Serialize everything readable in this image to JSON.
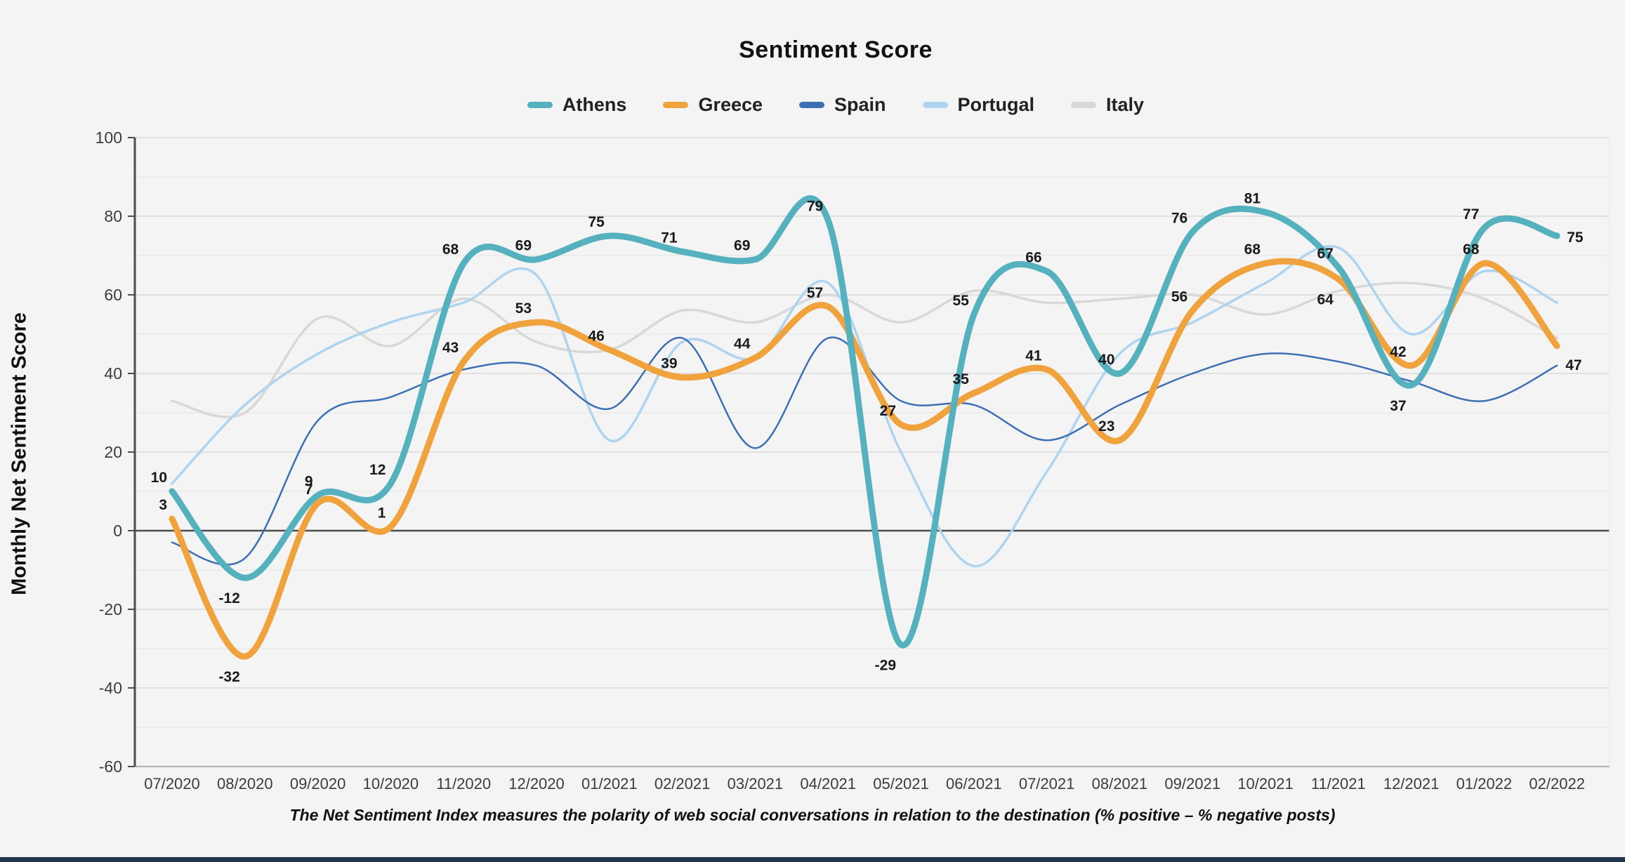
{
  "title": "Sentiment Score",
  "y_axis": {
    "label": "Monthly Net Sentiment Score",
    "tick_labels": [
      100,
      80,
      60,
      40,
      20,
      0,
      -20,
      -40,
      -60
    ],
    "min": -60,
    "max": 100
  },
  "footnote": "The Net Sentiment Index measures the polarity of web social conversations in relation to the destination (% positive – % negative posts)",
  "legend": [
    {
      "label": "Athens",
      "color": "#56b1be"
    },
    {
      "label": "Greece",
      "color": "#f0a23c"
    },
    {
      "label": "Spain",
      "color": "#3d6fb5"
    },
    {
      "label": "Portugal",
      "color": "#aed4ef"
    },
    {
      "label": "Italy",
      "color": "#d8d8d8"
    }
  ],
  "chart_data": {
    "type": "line",
    "title": "Sentiment Score",
    "xlabel": "",
    "ylabel": "Monthly Net Sentiment Score",
    "ylim": [
      -60,
      100
    ],
    "grid": "horizontal gridlines every 10, labeled every 20, dark zero line",
    "legend_position": "top",
    "x": [
      "07/2020",
      "08/2020",
      "09/2020",
      "10/2020",
      "11/2020",
      "12/2020",
      "01/2021",
      "02/2021",
      "03/2021",
      "04/2021",
      "05/2021",
      "06/2021",
      "07/2021",
      "08/2021",
      "09/2021",
      "10/2021",
      "11/2021",
      "12/2021",
      "01/2022",
      "02/2022"
    ],
    "series": [
      {
        "name": "Italy",
        "color": "#d8d8d8",
        "width": 3.5,
        "show_labels": false,
        "values": [
          33,
          30,
          54,
          47,
          59,
          48,
          46,
          56,
          53,
          60,
          53,
          61,
          58,
          59,
          60,
          55,
          61,
          63,
          59,
          49
        ]
      },
      {
        "name": "Portugal",
        "color": "#aed4ef",
        "width": 3.5,
        "show_labels": false,
        "values": [
          12,
          32,
          45,
          53,
          58,
          65,
          23,
          48,
          44,
          63,
          20,
          -9,
          15,
          45,
          53,
          63,
          72,
          50,
          66,
          58
        ]
      },
      {
        "name": "Spain",
        "color": "#3d6fb5",
        "width": 2.5,
        "show_labels": false,
        "values": [
          -3,
          -7,
          28,
          34,
          41,
          42,
          31,
          49,
          21,
          49,
          33,
          32,
          23,
          32,
          40,
          45,
          43,
          38,
          33,
          42
        ]
      },
      {
        "name": "Greece",
        "color": "#f0a23c",
        "width": 9,
        "show_labels": true,
        "values": [
          3,
          -32,
          7,
          1,
          43,
          53,
          46,
          39,
          44,
          57,
          27,
          35,
          41,
          23,
          56,
          68,
          64,
          42,
          68,
          47
        ]
      },
      {
        "name": "Athens",
        "color": "#56b1be",
        "width": 9,
        "show_labels": true,
        "values": [
          10,
          -12,
          9,
          12,
          68,
          69,
          75,
          71,
          69,
          79,
          -29,
          55,
          66,
          40,
          76,
          81,
          67,
          37,
          77,
          75
        ]
      }
    ],
    "label_overrides": {
      "Athens": {
        "12/2021": "below",
        "02/2022": "right"
      },
      "Greece": {
        "11/2021": "below",
        "02/2022": "below-right"
      }
    }
  },
  "colors": {
    "background": "#f4f4f4",
    "axis": "#4c4c4c",
    "zero_line": "#4c4c4c",
    "grid_major": "#d9d9d9",
    "grid_minor": "#e9e9e9",
    "bottom_axis": "#b0b0b0",
    "tick_text": "#3c3c3c",
    "value_label_text": "#1a1a1a",
    "bottom_bar": "#233750"
  }
}
